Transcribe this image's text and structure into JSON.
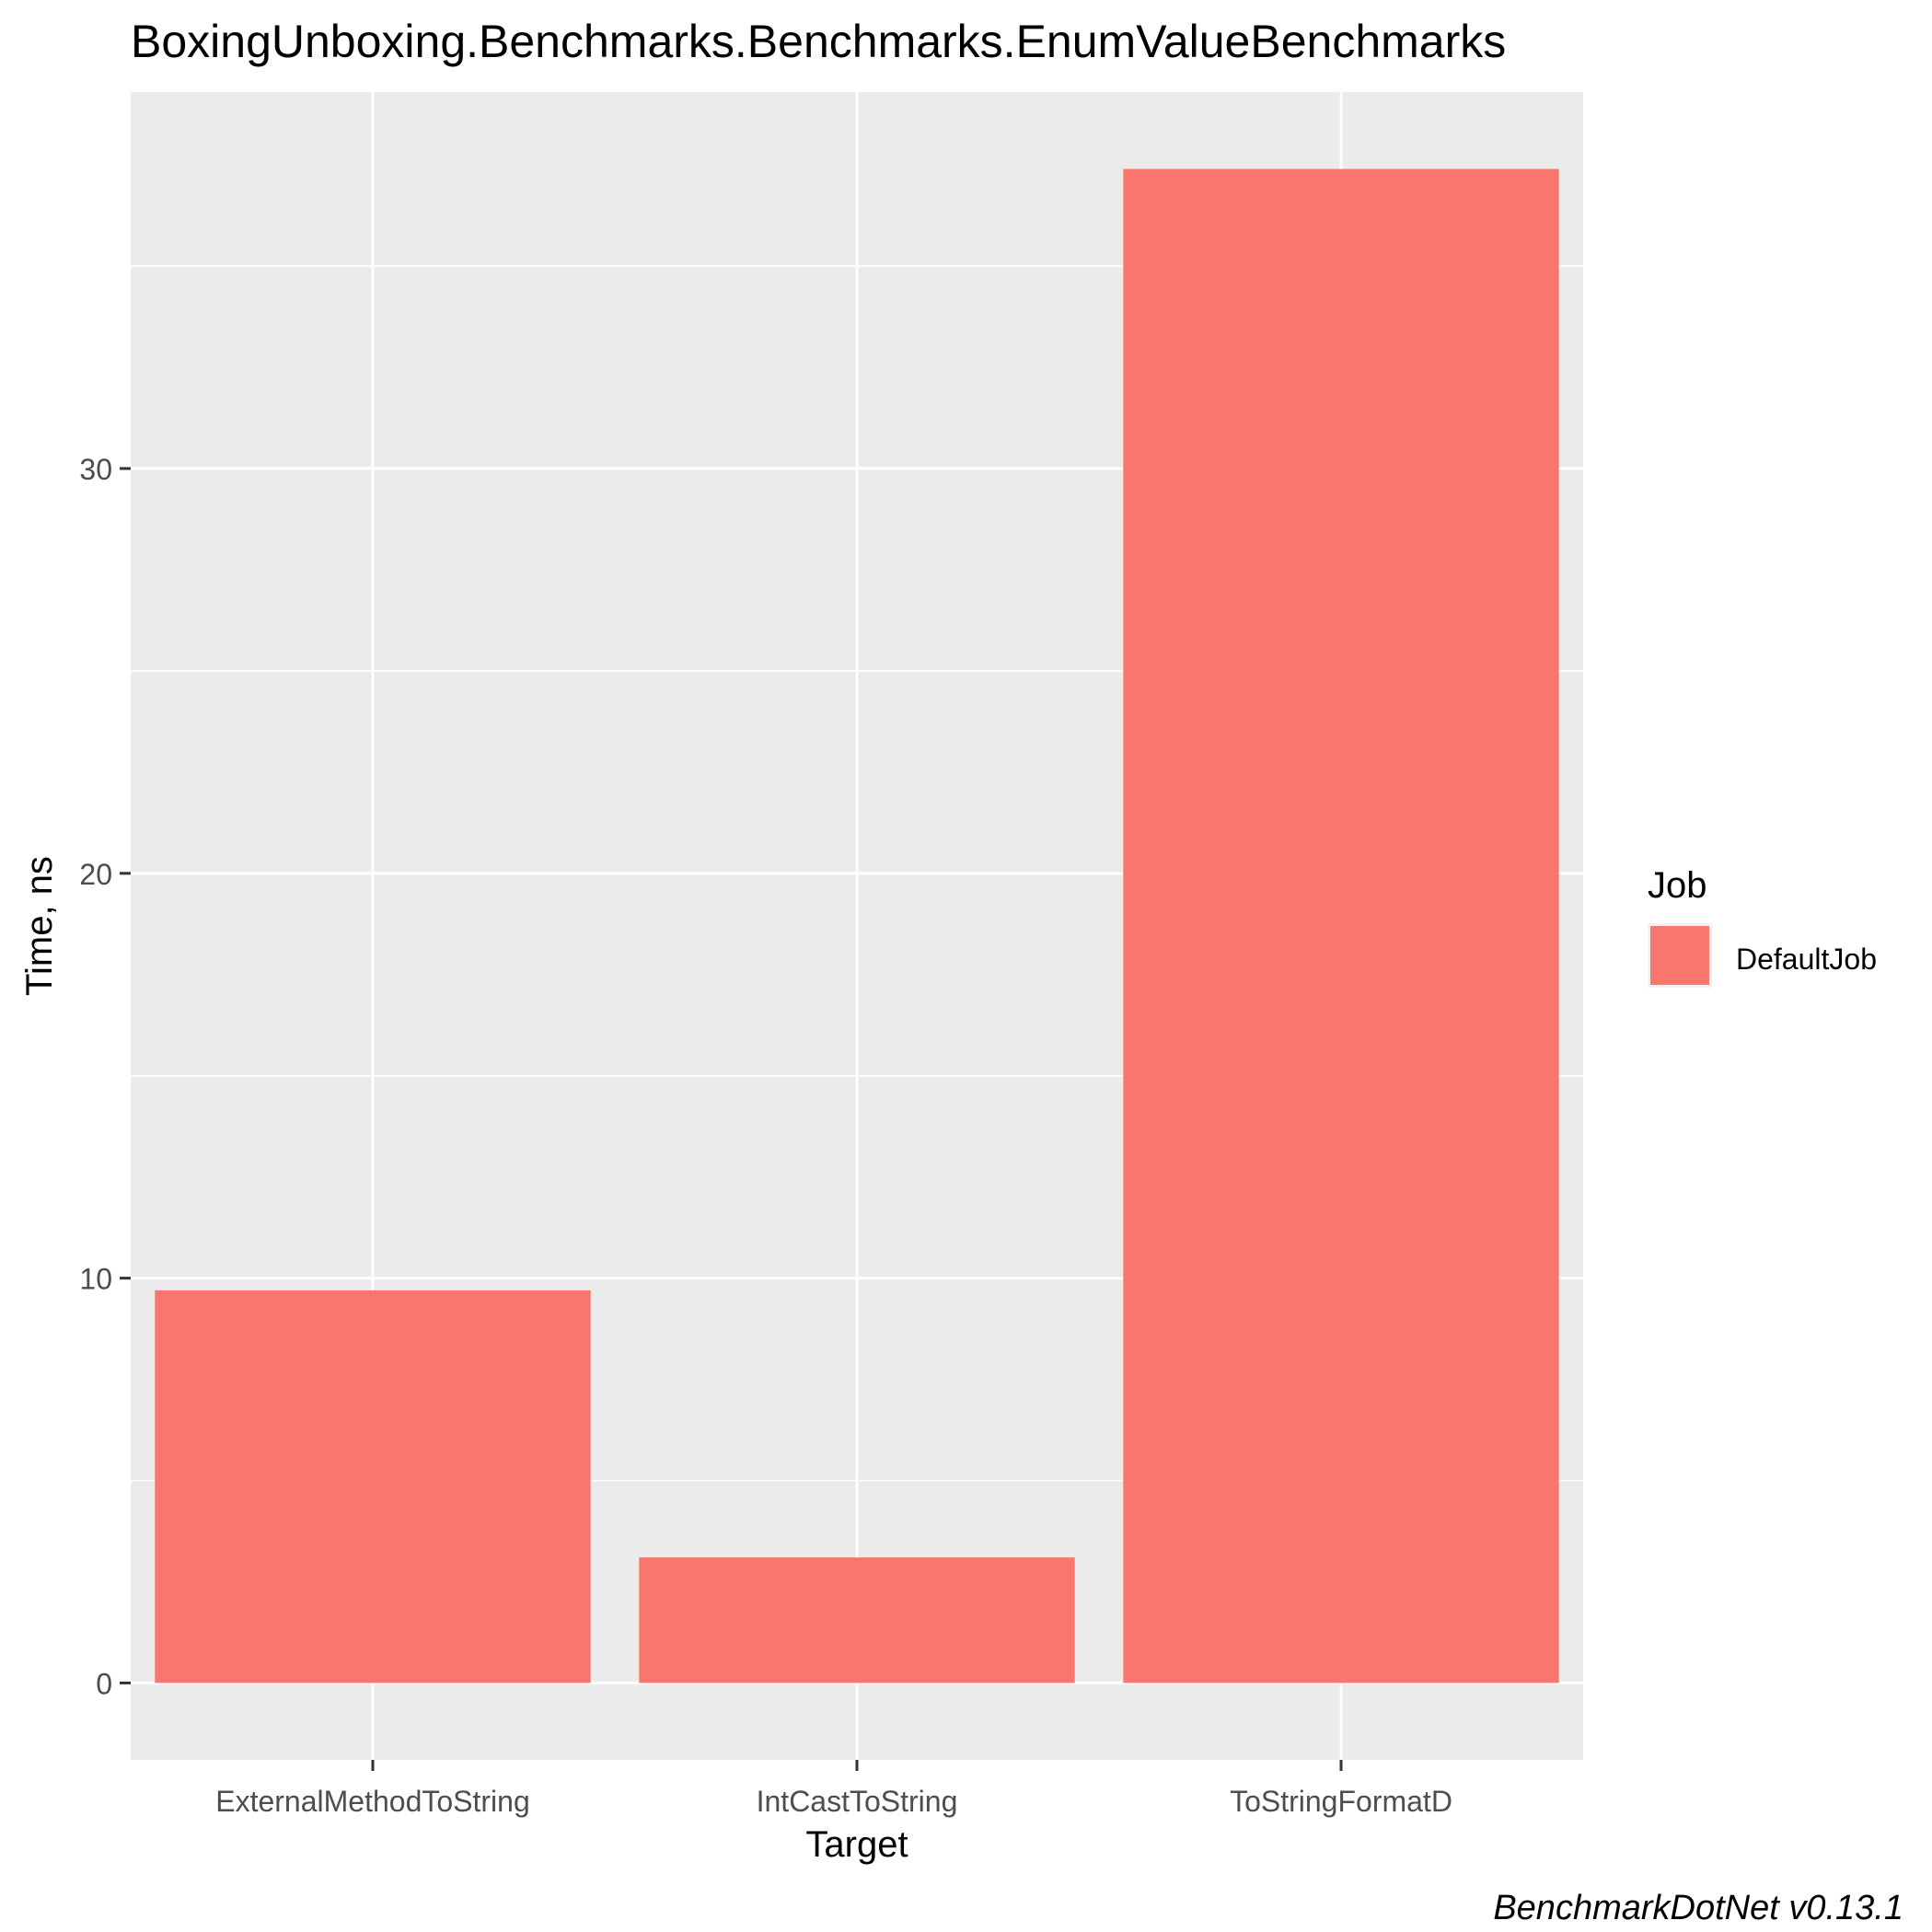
{
  "chart_data": {
    "type": "bar",
    "title": "BoxingUnboxing.Benchmarks.Benchmarks.EnumValueBenchmarks",
    "xlabel": "Target",
    "ylabel": "Time, ns",
    "categories": [
      "ExternalMethodToString",
      "IntCastToString",
      "ToStringFormatD"
    ],
    "series": [
      {
        "name": "DefaultJob",
        "values": [
          9.7,
          3.1,
          37.4
        ],
        "color": "#F8766D"
      }
    ],
    "ylim": [
      -1.9,
      39.3
    ],
    "yticks": [
      0,
      10,
      20,
      30
    ],
    "grid": true,
    "panel_background": "#EBEBEB",
    "grid_color": "#FFFFFF",
    "legend": {
      "title": "Job",
      "position": "right"
    },
    "caption": "BenchmarkDotNet v0.13.1"
  }
}
